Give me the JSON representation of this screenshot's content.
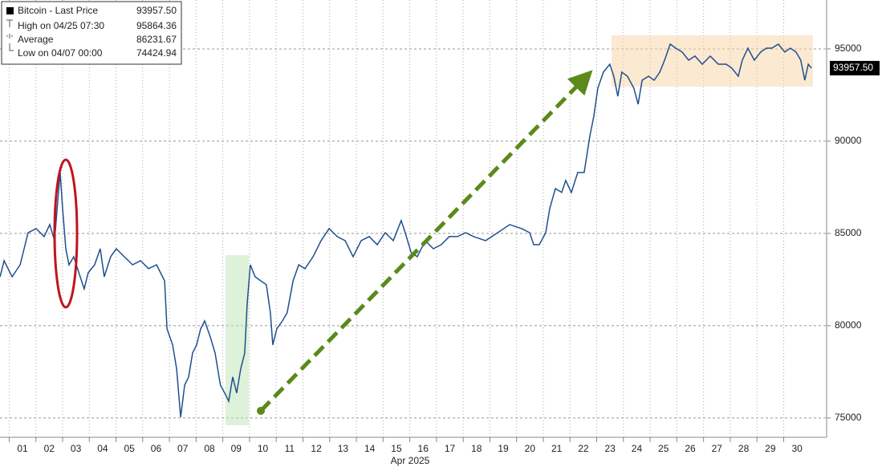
{
  "chart_data": {
    "type": "line",
    "xlabel": "Apr 2025",
    "legend": [
      {
        "name": "Bitcoin - Last Price",
        "value": "93957.50"
      },
      {
        "name": "High on 04/25 07:30",
        "value": "95864.36"
      },
      {
        "name": "Average",
        "value": "86231.67"
      },
      {
        "name": "Low on 04/07 00:00",
        "value": "74424.94"
      }
    ],
    "last_price_label": "93957.50",
    "xlim": [
      -0.343,
      30.608
    ],
    "ylim": [
      73950,
      97650
    ],
    "yticks": [
      75000,
      80000,
      85000,
      90000,
      95000
    ],
    "xticks": [
      {
        "value": 0,
        "label": "01"
      },
      {
        "value": 1,
        "label": "02"
      },
      {
        "value": 2,
        "label": "03"
      },
      {
        "value": 3,
        "label": "04"
      },
      {
        "value": 4,
        "label": "05"
      },
      {
        "value": 5,
        "label": "06"
      },
      {
        "value": 6,
        "label": "07"
      },
      {
        "value": 7,
        "label": "08"
      },
      {
        "value": 8,
        "label": "09"
      },
      {
        "value": 9,
        "label": "10"
      },
      {
        "value": 10,
        "label": "11"
      },
      {
        "value": 11,
        "label": "12"
      },
      {
        "value": 12,
        "label": "13"
      },
      {
        "value": 13,
        "label": "14"
      },
      {
        "value": 14,
        "label": "15"
      },
      {
        "value": 15,
        "label": "16"
      },
      {
        "value": 16,
        "label": "17"
      },
      {
        "value": 17,
        "label": "18"
      },
      {
        "value": 18,
        "label": "19"
      },
      {
        "value": 19,
        "label": "20"
      },
      {
        "value": 20,
        "label": "21"
      },
      {
        "value": 21,
        "label": "22"
      },
      {
        "value": 22,
        "label": "23"
      },
      {
        "value": 23,
        "label": "24"
      },
      {
        "value": 24,
        "label": "25"
      },
      {
        "value": 25,
        "label": "26"
      },
      {
        "value": 26,
        "label": "27"
      },
      {
        "value": 27,
        "label": "28"
      },
      {
        "value": 28,
        "label": "29"
      },
      {
        "value": 29,
        "label": "30"
      }
    ],
    "grid": true,
    "series": [
      {
        "name": "Bitcoin - Last Price",
        "color": "#1f4f8f",
        "x": [
          -0.34,
          -0.19,
          0.11,
          0.41,
          0.71,
          1.01,
          1.31,
          1.52,
          1.7,
          1.82,
          1.91,
          2.0,
          2.12,
          2.24,
          2.42,
          2.66,
          2.81,
          2.96,
          3.2,
          3.41,
          3.56,
          3.8,
          4.01,
          4.31,
          4.62,
          4.92,
          5.22,
          5.52,
          5.82,
          5.91,
          6.12,
          6.27,
          6.42,
          6.57,
          6.72,
          6.87,
          7.02,
          7.17,
          7.32,
          7.53,
          7.71,
          7.91,
          8.07,
          8.22,
          8.37,
          8.52,
          8.67,
          8.82,
          8.91,
          9.03,
          9.21,
          9.42,
          9.63,
          9.78,
          9.87,
          10.02,
          10.23,
          10.41,
          10.63,
          10.84,
          11.08,
          11.38,
          11.68,
          11.98,
          12.28,
          12.58,
          12.88,
          13.18,
          13.48,
          13.78,
          14.08,
          14.38,
          14.68,
          14.83,
          15.05,
          15.28,
          15.58,
          15.88,
          16.18,
          16.48,
          16.79,
          17.09,
          17.39,
          17.84,
          18.29,
          18.74,
          19.19,
          19.49,
          19.64,
          19.85,
          20.09,
          20.24,
          20.45,
          20.69,
          20.84,
          21.05,
          21.29,
          21.53,
          21.74,
          21.89,
          22.04,
          22.25,
          22.49,
          22.64,
          22.79,
          22.94,
          23.15,
          23.39,
          23.55,
          23.7,
          23.94,
          24.15,
          24.36,
          24.54,
          24.75,
          24.96,
          25.2,
          25.44,
          25.68,
          25.95,
          26.25,
          26.55,
          26.85,
          27.06,
          27.3,
          27.45,
          27.66,
          27.9,
          28.14,
          28.35,
          28.56,
          28.8,
          29.04,
          29.25,
          29.46,
          29.64,
          29.79,
          29.92,
          30.04
        ],
        "values": [
          82650,
          83520,
          82650,
          83300,
          85040,
          85260,
          84830,
          85480,
          84610,
          86780,
          88300,
          86350,
          84170,
          83300,
          83740,
          82650,
          82000,
          82870,
          83300,
          84170,
          82650,
          83740,
          84170,
          83740,
          83300,
          83520,
          83090,
          83300,
          82430,
          79830,
          78960,
          77650,
          75040,
          76780,
          77220,
          78520,
          78960,
          79830,
          80260,
          79390,
          78520,
          76780,
          76350,
          75910,
          77220,
          76350,
          77650,
          78520,
          81130,
          83300,
          82650,
          82430,
          82220,
          80700,
          78960,
          79830,
          80260,
          80700,
          82430,
          83300,
          83090,
          83740,
          84610,
          85260,
          84830,
          84610,
          83740,
          84610,
          84830,
          84390,
          85040,
          84610,
          85700,
          85040,
          83960,
          83740,
          84610,
          84170,
          84390,
          84830,
          84830,
          85040,
          84830,
          84610,
          85040,
          85480,
          85260,
          85040,
          84390,
          84390,
          85040,
          86350,
          87430,
          87220,
          87870,
          87220,
          88300,
          88300,
          90260,
          91350,
          92870,
          93740,
          94170,
          93520,
          92430,
          93740,
          93520,
          92870,
          92000,
          93300,
          93520,
          93300,
          93740,
          94390,
          95260,
          95040,
          94830,
          94390,
          94610,
          94170,
          94610,
          94170,
          94170,
          93960,
          93520,
          94390,
          95040,
          94390,
          94830,
          95040,
          95040,
          95260,
          94830,
          95040,
          94830,
          94390,
          93300,
          94170,
          93957.5
        ]
      }
    ]
  }
}
